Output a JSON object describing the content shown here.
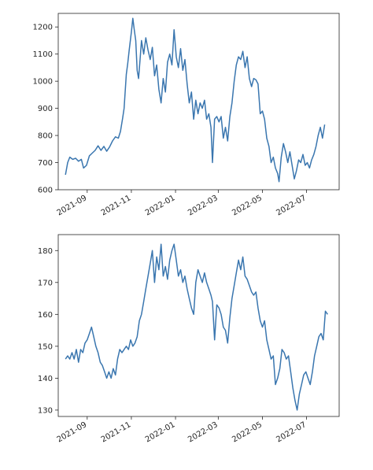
{
  "chart_data": [
    {
      "type": "line",
      "color": "#3a76af",
      "ylim": [
        600,
        1250
      ],
      "yticks": [
        600,
        700,
        800,
        900,
        1000,
        1100,
        1200
      ],
      "xticks": [
        "2021-09",
        "2021-11",
        "2022-01",
        "2022-03",
        "2022-05",
        "2022-07"
      ],
      "xlim": [
        "2021-07-23",
        "2022-08-15"
      ],
      "grid": false,
      "series": [
        {
          "points": [
            [
              "2021-08-02",
              655
            ],
            [
              "2021-08-05",
              700
            ],
            [
              "2021-08-08",
              720
            ],
            [
              "2021-08-12",
              712
            ],
            [
              "2021-08-16",
              716
            ],
            [
              "2021-08-20",
              705
            ],
            [
              "2021-08-24",
              712
            ],
            [
              "2021-08-27",
              680
            ],
            [
              "2021-08-31",
              690
            ],
            [
              "2021-09-04",
              725
            ],
            [
              "2021-09-08",
              735
            ],
            [
              "2021-09-12",
              745
            ],
            [
              "2021-09-16",
              762
            ],
            [
              "2021-09-20",
              745
            ],
            [
              "2021-09-24",
              760
            ],
            [
              "2021-09-28",
              742
            ],
            [
              "2021-10-02",
              758
            ],
            [
              "2021-10-06",
              780
            ],
            [
              "2021-10-10",
              795
            ],
            [
              "2021-10-14",
              790
            ],
            [
              "2021-10-17",
              815
            ],
            [
              "2021-10-20",
              865
            ],
            [
              "2021-10-22",
              900
            ],
            [
              "2021-10-25",
              1025
            ],
            [
              "2021-10-27",
              1065
            ],
            [
              "2021-10-29",
              1115
            ],
            [
              "2021-11-01",
              1180
            ],
            [
              "2021-11-03",
              1232
            ],
            [
              "2021-11-05",
              1190
            ],
            [
              "2021-11-07",
              1150
            ],
            [
              "2021-11-09",
              1040
            ],
            [
              "2021-11-11",
              1010
            ],
            [
              "2021-11-13",
              1080
            ],
            [
              "2021-11-15",
              1150
            ],
            [
              "2021-11-18",
              1100
            ],
            [
              "2021-11-21",
              1160
            ],
            [
              "2021-11-24",
              1115
            ],
            [
              "2021-11-27",
              1080
            ],
            [
              "2021-11-30",
              1125
            ],
            [
              "2021-12-03",
              1020
            ],
            [
              "2021-12-06",
              1060
            ],
            [
              "2021-12-09",
              970
            ],
            [
              "2021-12-12",
              920
            ],
            [
              "2021-12-15",
              1010
            ],
            [
              "2021-12-18",
              960
            ],
            [
              "2021-12-21",
              1070
            ],
            [
              "2021-12-24",
              1100
            ],
            [
              "2021-12-27",
              1060
            ],
            [
              "2021-12-30",
              1190
            ],
            [
              "2022-01-02",
              1090
            ],
            [
              "2022-01-05",
              1050
            ],
            [
              "2022-01-08",
              1120
            ],
            [
              "2022-01-11",
              1040
            ],
            [
              "2022-01-14",
              1080
            ],
            [
              "2022-01-17",
              990
            ],
            [
              "2022-01-20",
              920
            ],
            [
              "2022-01-23",
              960
            ],
            [
              "2022-01-26",
              860
            ],
            [
              "2022-01-29",
              930
            ],
            [
              "2022-02-01",
              880
            ],
            [
              "2022-02-04",
              920
            ],
            [
              "2022-02-07",
              900
            ],
            [
              "2022-02-10",
              930
            ],
            [
              "2022-02-13",
              860
            ],
            [
              "2022-02-16",
              880
            ],
            [
              "2022-02-19",
              830
            ],
            [
              "2022-02-21",
              700
            ],
            [
              "2022-02-24",
              860
            ],
            [
              "2022-02-27",
              870
            ],
            [
              "2022-03-02",
              850
            ],
            [
              "2022-03-05",
              870
            ],
            [
              "2022-03-08",
              790
            ],
            [
              "2022-03-11",
              830
            ],
            [
              "2022-03-14",
              780
            ],
            [
              "2022-03-17",
              870
            ],
            [
              "2022-03-20",
              920
            ],
            [
              "2022-03-23",
              1000
            ],
            [
              "2022-03-26",
              1060
            ],
            [
              "2022-03-29",
              1090
            ],
            [
              "2022-04-01",
              1080
            ],
            [
              "2022-04-04",
              1110
            ],
            [
              "2022-04-07",
              1050
            ],
            [
              "2022-04-10",
              1090
            ],
            [
              "2022-04-13",
              1010
            ],
            [
              "2022-04-16",
              980
            ],
            [
              "2022-04-19",
              1010
            ],
            [
              "2022-04-22",
              1005
            ],
            [
              "2022-04-25",
              990
            ],
            [
              "2022-04-28",
              880
            ],
            [
              "2022-05-01",
              890
            ],
            [
              "2022-05-04",
              860
            ],
            [
              "2022-05-07",
              790
            ],
            [
              "2022-05-10",
              760
            ],
            [
              "2022-05-13",
              700
            ],
            [
              "2022-05-16",
              720
            ],
            [
              "2022-05-19",
              680
            ],
            [
              "2022-05-22",
              660
            ],
            [
              "2022-05-24",
              630
            ],
            [
              "2022-05-27",
              720
            ],
            [
              "2022-05-30",
              770
            ],
            [
              "2022-06-02",
              740
            ],
            [
              "2022-06-05",
              700
            ],
            [
              "2022-06-08",
              740
            ],
            [
              "2022-06-11",
              690
            ],
            [
              "2022-06-14",
              640
            ],
            [
              "2022-06-17",
              670
            ],
            [
              "2022-06-20",
              710
            ],
            [
              "2022-06-23",
              700
            ],
            [
              "2022-06-26",
              730
            ],
            [
              "2022-06-29",
              690
            ],
            [
              "2022-07-02",
              700
            ],
            [
              "2022-07-05",
              680
            ],
            [
              "2022-07-08",
              710
            ],
            [
              "2022-07-11",
              730
            ],
            [
              "2022-07-14",
              760
            ],
            [
              "2022-07-17",
              800
            ],
            [
              "2022-07-20",
              830
            ],
            [
              "2022-07-23",
              790
            ],
            [
              "2022-07-26",
              840
            ]
          ]
        }
      ]
    },
    {
      "type": "line",
      "color": "#3a76af",
      "ylim": [
        128,
        185
      ],
      "yticks": [
        130,
        140,
        150,
        160,
        170,
        180
      ],
      "xticks": [
        "2021-09",
        "2021-11",
        "2022-01",
        "2022-03",
        "2022-05",
        "2022-07"
      ],
      "xlim": [
        "2021-07-23",
        "2022-08-15"
      ],
      "grid": false,
      "series": [
        {
          "points": [
            [
              "2021-08-02",
              146
            ],
            [
              "2021-08-05",
              147
            ],
            [
              "2021-08-08",
              146
            ],
            [
              "2021-08-11",
              148
            ],
            [
              "2021-08-14",
              146
            ],
            [
              "2021-08-17",
              149
            ],
            [
              "2021-08-20",
              145
            ],
            [
              "2021-08-23",
              149
            ],
            [
              "2021-08-26",
              148
            ],
            [
              "2021-08-29",
              151
            ],
            [
              "2021-09-01",
              152
            ],
            [
              "2021-09-04",
              154
            ],
            [
              "2021-09-07",
              156
            ],
            [
              "2021-09-10",
              153
            ],
            [
              "2021-09-13",
              150
            ],
            [
              "2021-09-16",
              148
            ],
            [
              "2021-09-19",
              145
            ],
            [
              "2021-09-22",
              144
            ],
            [
              "2021-09-25",
              142
            ],
            [
              "2021-09-28",
              140
            ],
            [
              "2021-10-01",
              142
            ],
            [
              "2021-10-04",
              140
            ],
            [
              "2021-10-07",
              143
            ],
            [
              "2021-10-10",
              141
            ],
            [
              "2021-10-13",
              146
            ],
            [
              "2021-10-16",
              149
            ],
            [
              "2021-10-19",
              148
            ],
            [
              "2021-10-22",
              149
            ],
            [
              "2021-10-25",
              150
            ],
            [
              "2021-10-28",
              149
            ],
            [
              "2021-10-31",
              152
            ],
            [
              "2021-11-03",
              150
            ],
            [
              "2021-11-06",
              151
            ],
            [
              "2021-11-09",
              153
            ],
            [
              "2021-11-12",
              158
            ],
            [
              "2021-11-15",
              160
            ],
            [
              "2021-11-18",
              164
            ],
            [
              "2021-11-21",
              168
            ],
            [
              "2021-11-24",
              172
            ],
            [
              "2021-11-27",
              176
            ],
            [
              "2021-11-30",
              180
            ],
            [
              "2021-12-03",
              170
            ],
            [
              "2021-12-06",
              178
            ],
            [
              "2021-12-09",
              174
            ],
            [
              "2021-12-12",
              182
            ],
            [
              "2021-12-15",
              172
            ],
            [
              "2021-12-18",
              175
            ],
            [
              "2021-12-21",
              171
            ],
            [
              "2021-12-24",
              177
            ],
            [
              "2021-12-27",
              180
            ],
            [
              "2021-12-30",
              182
            ],
            [
              "2022-01-02",
              177
            ],
            [
              "2022-01-05",
              172
            ],
            [
              "2022-01-08",
              174
            ],
            [
              "2022-01-11",
              170
            ],
            [
              "2022-01-14",
              172
            ],
            [
              "2022-01-17",
              168
            ],
            [
              "2022-01-20",
              165
            ],
            [
              "2022-01-23",
              162
            ],
            [
              "2022-01-26",
              160
            ],
            [
              "2022-01-29",
              170
            ],
            [
              "2022-02-01",
              174
            ],
            [
              "2022-02-04",
              172
            ],
            [
              "2022-02-07",
              170
            ],
            [
              "2022-02-10",
              173
            ],
            [
              "2022-02-13",
              170
            ],
            [
              "2022-02-16",
              168
            ],
            [
              "2022-02-19",
              166
            ],
            [
              "2022-02-21",
              164
            ],
            [
              "2022-02-24",
              152
            ],
            [
              "2022-02-27",
              163
            ],
            [
              "2022-03-02",
              162
            ],
            [
              "2022-03-05",
              160
            ],
            [
              "2022-03-08",
              156
            ],
            [
              "2022-03-11",
              155
            ],
            [
              "2022-03-14",
              151
            ],
            [
              "2022-03-17",
              159
            ],
            [
              "2022-03-20",
              165
            ],
            [
              "2022-03-23",
              169
            ],
            [
              "2022-03-26",
              173
            ],
            [
              "2022-03-29",
              177
            ],
            [
              "2022-04-01",
              174
            ],
            [
              "2022-04-04",
              178
            ],
            [
              "2022-04-07",
              172
            ],
            [
              "2022-04-10",
              171
            ],
            [
              "2022-04-13",
              169
            ],
            [
              "2022-04-16",
              167
            ],
            [
              "2022-04-19",
              166
            ],
            [
              "2022-04-22",
              167
            ],
            [
              "2022-04-25",
              162
            ],
            [
              "2022-04-28",
              158
            ],
            [
              "2022-05-01",
              156
            ],
            [
              "2022-05-04",
              158
            ],
            [
              "2022-05-07",
              152
            ],
            [
              "2022-05-10",
              149
            ],
            [
              "2022-05-13",
              146
            ],
            [
              "2022-05-16",
              147
            ],
            [
              "2022-05-19",
              138
            ],
            [
              "2022-05-22",
              140
            ],
            [
              "2022-05-25",
              143
            ],
            [
              "2022-05-28",
              149
            ],
            [
              "2022-05-31",
              148
            ],
            [
              "2022-06-03",
              146
            ],
            [
              "2022-06-06",
              147
            ],
            [
              "2022-06-09",
              142
            ],
            [
              "2022-06-12",
              137
            ],
            [
              "2022-06-15",
              133
            ],
            [
              "2022-06-18",
              130
            ],
            [
              "2022-06-21",
              135
            ],
            [
              "2022-06-24",
              138
            ],
            [
              "2022-06-27",
              141
            ],
            [
              "2022-06-30",
              142
            ],
            [
              "2022-07-03",
              140
            ],
            [
              "2022-07-06",
              138
            ],
            [
              "2022-07-09",
              142
            ],
            [
              "2022-07-12",
              147
            ],
            [
              "2022-07-15",
              150
            ],
            [
              "2022-07-18",
              153
            ],
            [
              "2022-07-21",
              154
            ],
            [
              "2022-07-24",
              152
            ],
            [
              "2022-07-27",
              161
            ],
            [
              "2022-07-30",
              160
            ]
          ]
        }
      ]
    }
  ]
}
